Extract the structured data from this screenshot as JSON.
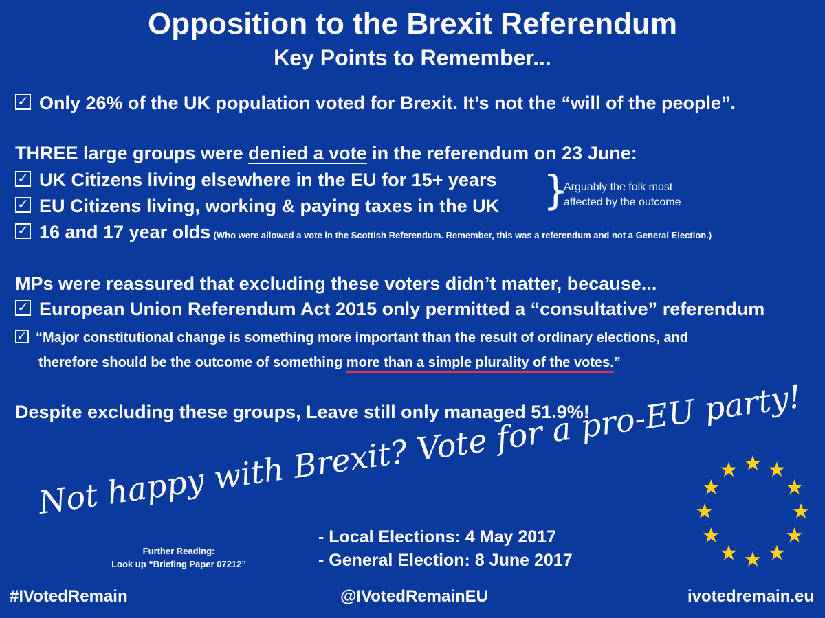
{
  "title": "Opposition to the Brexit Referendum",
  "subtitle": "Key Points to Remember...",
  "check_glyph": "✓",
  "point1": "Only 26% of the UK population voted for Brexit. It’s not the “will of the people”.",
  "groups_heading": {
    "prefix": "THREE large groups were ",
    "emphasis": "denied a vote",
    "suffix": " in the referendum on 23 June:"
  },
  "groups": {
    "uk_citizens": "UK Citizens living elsewhere in the EU for 15+ years",
    "eu_citizens": "EU Citizens living, working & paying taxes in the UK",
    "youth": "16 and 17 year olds",
    "youth_note": "(Who were allowed a vote in the Scottish Referendum. Remember, this was a referendum and not a General Election.)"
  },
  "aside": {
    "brace": "}",
    "line1": "Arguably the folk most",
    "line2": "affected by the outcome"
  },
  "mps_heading": "MPs were reassured that excluding these voters didn’t matter, because...",
  "act_point": "European Union Referendum Act 2015 only permitted a “consultative” referendum",
  "quote": {
    "line1": "“Major constitutional change is something more important than the result of ordinary elections, and",
    "line2_prefix": "therefore should be the outcome of something ",
    "line2_emphasis": "more than a simple plurality of the votes.",
    "line2_suffix": "”"
  },
  "conclusion": "Despite excluding these groups, Leave still only managed 51.9%!",
  "slogan": "Not happy with Brexit? Vote for a pro-EU party!",
  "dates": {
    "local": "- Local Elections: 4 May 2017",
    "general": "- General Election: 8 June 2017"
  },
  "further_reading": {
    "line1": "Further Reading:",
    "line2": "Look up “Briefing Paper 07212”"
  },
  "footer": {
    "hashtag": "#IVotedRemain",
    "handle": "@IVotedRemainEU",
    "website": "ivotedremain.eu"
  },
  "colors": {
    "background": "#0b3a9e",
    "text": "#ffffff",
    "star": "#ffd21a",
    "underline_accent": "#e8323c"
  }
}
